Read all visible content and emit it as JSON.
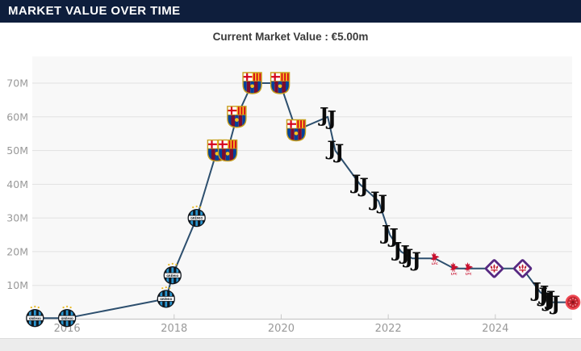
{
  "header": {
    "title": "MARKET VALUE OVER TIME",
    "bg_color": "#0e1e3c",
    "text_color": "#ffffff"
  },
  "chart_title": "Current Market Value : €5.00m",
  "chart_data": {
    "type": "line",
    "title": "Current Market Value : €5.00m",
    "currency_unit": "€ million",
    "x_ticks": [
      2016,
      2018,
      2020,
      2022,
      2024
    ],
    "x_tick_labels": [
      "2016",
      "2018",
      "2020",
      "2022",
      "2024"
    ],
    "y_ticks": [
      10,
      20,
      30,
      40,
      50,
      60,
      70
    ],
    "y_tick_labels": [
      "10M",
      "20M",
      "30M",
      "40M",
      "50M",
      "60M",
      "70M"
    ],
    "xlim": [
      2015.35,
      2025.45
    ],
    "ylim": [
      0,
      78
    ],
    "grid": "horizontal",
    "legend": "none (club crests mark each data point)",
    "line_color": "#2d4f6e",
    "points": [
      {
        "year": 2015.4,
        "value_m": 0.3,
        "club": "gremio"
      },
      {
        "year": 2016.0,
        "value_m": 0.3,
        "club": "gremio"
      },
      {
        "year": 2017.85,
        "value_m": 6,
        "club": "gremio"
      },
      {
        "year": 2017.97,
        "value_m": 13,
        "club": "gremio"
      },
      {
        "year": 2018.42,
        "value_m": 30,
        "club": "gremio"
      },
      {
        "year": 2018.8,
        "value_m": 50,
        "club": "barcelona"
      },
      {
        "year": 2019.0,
        "value_m": 50,
        "club": "barcelona"
      },
      {
        "year": 2019.17,
        "value_m": 60,
        "club": "barcelona"
      },
      {
        "year": 2019.46,
        "value_m": 70,
        "club": "barcelona"
      },
      {
        "year": 2019.98,
        "value_m": 70,
        "club": "barcelona"
      },
      {
        "year": 2020.28,
        "value_m": 56,
        "club": "barcelona"
      },
      {
        "year": 2020.87,
        "value_m": 60,
        "club": "juventus"
      },
      {
        "year": 2021.01,
        "value_m": 50,
        "club": "juventus"
      },
      {
        "year": 2021.47,
        "value_m": 40,
        "club": "juventus"
      },
      {
        "year": 2021.82,
        "value_m": 35,
        "club": "juventus"
      },
      {
        "year": 2022.03,
        "value_m": 25,
        "club": "juventus"
      },
      {
        "year": 2022.24,
        "value_m": 20,
        "club": "juventus"
      },
      {
        "year": 2022.45,
        "value_m": 18,
        "club": "juventus"
      },
      {
        "year": 2022.87,
        "value_m": 18,
        "club": "liverpool"
      },
      {
        "year": 2023.23,
        "value_m": 15,
        "club": "liverpool"
      },
      {
        "year": 2023.5,
        "value_m": 15,
        "club": "liverpool"
      },
      {
        "year": 2023.98,
        "value_m": 15,
        "club": "fiorentina"
      },
      {
        "year": 2024.51,
        "value_m": 15,
        "club": "fiorentina"
      },
      {
        "year": 2024.84,
        "value_m": 8,
        "club": "juventus"
      },
      {
        "year": 2024.96,
        "value_m": 6.5,
        "club": "juventus"
      },
      {
        "year": 2025.05,
        "value_m": 5,
        "club": "juventus"
      },
      {
        "year": 2025.45,
        "value_m": 5,
        "club": "red-crest"
      }
    ]
  },
  "clubs": {
    "gremio": {
      "label": "Grêmio circular crest",
      "caption": "GRÊMIO",
      "colors": [
        "#2a95cf",
        "#10161d",
        "#ffffff",
        "#e8b923"
      ]
    },
    "barcelona": {
      "label": "FC Barcelona shield crest",
      "caption": "",
      "colors": [
        "#00419b",
        "#7b0c2e",
        "#f7c31f",
        "#d5051d"
      ]
    },
    "juventus": {
      "label": "Juventus JJ crest",
      "caption": "JJ",
      "colors": [
        "#0b0b0b"
      ]
    },
    "liverpool": {
      "label": "Liverpool liver bird crest",
      "caption": "LFC",
      "colors": [
        "#c8102e"
      ]
    },
    "fiorentina": {
      "label": "Fiorentina diamond fleur-de-lis crest",
      "caption": "",
      "colors": [
        "#572982",
        "#c22033"
      ]
    },
    "red-crest": {
      "label": "red circular crest, clipped by right edge",
      "caption": "",
      "colors": [
        "#c2242e",
        "#ee4953"
      ]
    }
  }
}
